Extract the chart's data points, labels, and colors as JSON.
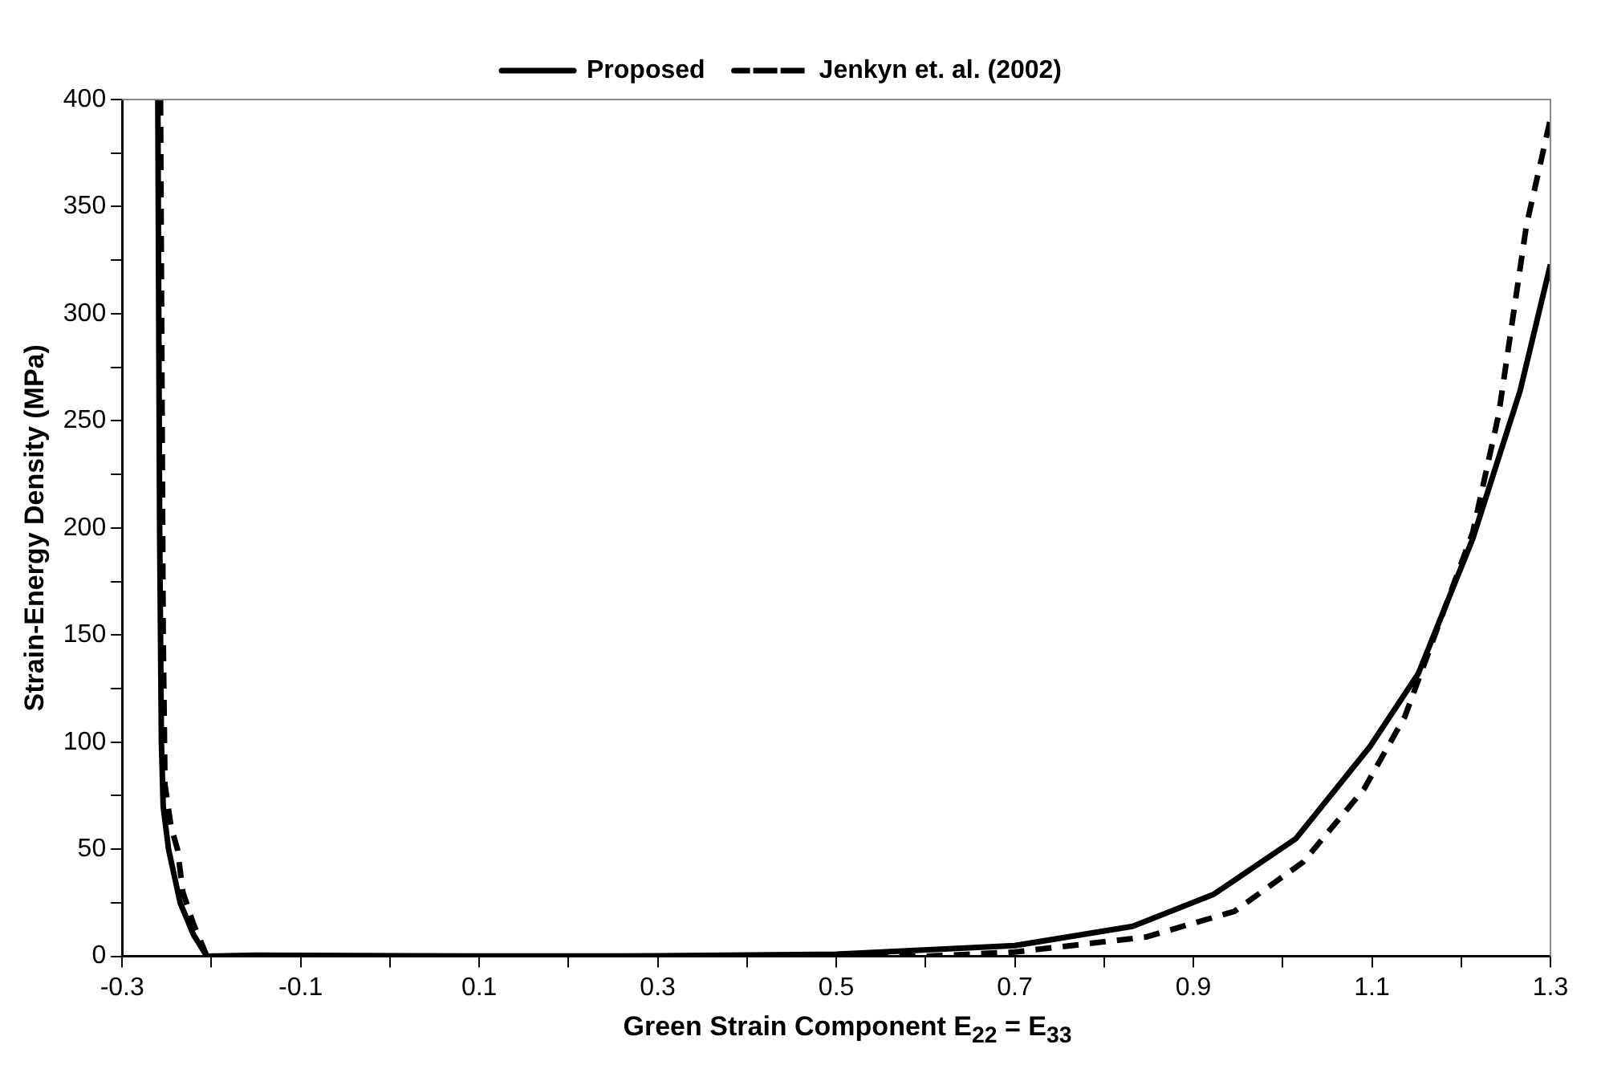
{
  "chart_data": {
    "type": "line",
    "xlabel": "Green Strain Component E$_{22}$ = E$_{33}$",
    "ylabel": "Strain-Energy Density (MPa)",
    "xlim": [
      -0.3,
      1.3
    ],
    "xticks": [
      -0.3,
      {
        "value": -0.2,
        "label": null
      },
      -0.1,
      {
        "value": 0,
        "label": null
      },
      0.1,
      {
        "value": 0.2,
        "label": null
      },
      0.3,
      {
        "value": 0.4,
        "label": null
      },
      0.5,
      {
        "value": 0.6,
        "label": null
      },
      0.7,
      {
        "value": 0.8,
        "label": null
      },
      0.9,
      {
        "value": 1.0,
        "label": null
      },
      1.1,
      {
        "value": 1.2,
        "label": null
      },
      1.3
    ],
    "ylim": [
      0,
      400
    ],
    "yticks": [
      0,
      {
        "value": 25,
        "label": null
      },
      50,
      {
        "value": 75,
        "label": null
      },
      100,
      {
        "value": 125,
        "label": null
      },
      150,
      {
        "value": 175,
        "label": null
      },
      200,
      {
        "value": 225,
        "label": null
      },
      250,
      {
        "value": 275,
        "label": null
      },
      300,
      {
        "value": 325,
        "label": null
      },
      350,
      {
        "value": 375,
        "label": null
      },
      400
    ],
    "grid": false,
    "legend": "top",
    "marker": "none",
    "series": [
      {
        "name": "Proposed",
        "color": "#000000",
        "line_style": "solid",
        "x": [
          -0.26,
          -0.258,
          -0.256,
          -0.254,
          -0.248,
          -0.235,
          -0.22,
          -0.205,
          -0.15,
          0.1,
          0.3,
          0.5,
          0.7,
          0.832,
          0.923,
          1.015,
          1.098,
          1.152,
          1.213,
          1.266,
          1.3
        ],
        "values": [
          400,
          200,
          100,
          70,
          50,
          25,
          10,
          0,
          0.5,
          0.1,
          0.2,
          1,
          5,
          14,
          29,
          55,
          98,
          132,
          195,
          264,
          323
        ]
      },
      {
        "name": "Jenkyn et. al. (2002)",
        "color": "#000000",
        "line_style": "dashed",
        "x": [
          -0.257,
          -0.254,
          -0.252,
          -0.245,
          -0.238,
          -0.232,
          -0.22,
          -0.205,
          0.1,
          0.6,
          0.7,
          0.847,
          0.946,
          1.023,
          1.091,
          1.137,
          1.175,
          1.213,
          1.242,
          1.273,
          1.3
        ],
        "values": [
          400,
          150,
          80,
          60,
          50,
          30,
          15,
          0,
          0,
          0,
          2,
          9,
          21,
          44,
          78,
          112,
          155,
          198,
          253,
          341,
          391
        ]
      }
    ]
  }
}
